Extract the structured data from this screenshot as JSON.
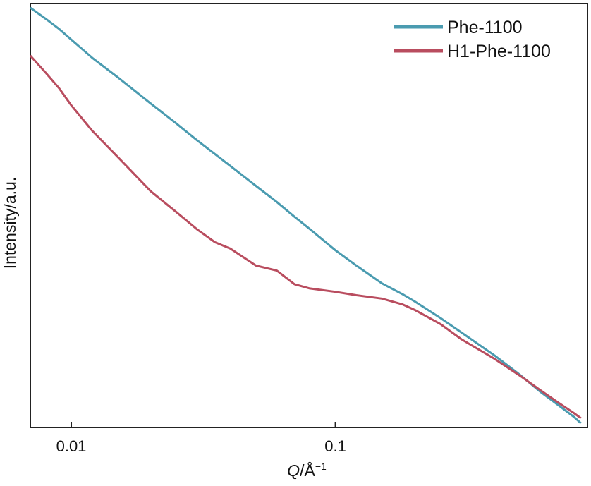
{
  "colors": {
    "background": "#ffffff",
    "axis": "#222222",
    "series_phe": "#4a9bb0",
    "series_h1": "#b94d5f"
  },
  "chart_data": {
    "type": "line",
    "title": "",
    "xlabel_italic": "Q",
    "xlabel_unit": "/Å",
    "xlabel_exponent": "−1",
    "ylabel": "Intensity/a.u.",
    "xscale": "log",
    "xlim": [
      0.007,
      0.9
    ],
    "ylim": [
      0,
      1
    ],
    "yticks_shown": false,
    "grid": false,
    "legend_position": "top-right",
    "xticks": [
      {
        "value": 0.01,
        "label": "0.01"
      },
      {
        "value": 0.1,
        "label": "0.1"
      }
    ],
    "series": [
      {
        "name": "Phe-1100",
        "color": "#4a9bb0",
        "x": [
          0.007,
          0.008,
          0.009,
          0.01,
          0.012,
          0.015,
          0.02,
          0.025,
          0.03,
          0.04,
          0.05,
          0.06,
          0.07,
          0.08,
          0.1,
          0.12,
          0.15,
          0.18,
          0.2,
          0.25,
          0.3,
          0.4,
          0.5,
          0.6,
          0.7,
          0.8,
          0.85
        ],
        "y": [
          0.99,
          0.964,
          0.94,
          0.915,
          0.872,
          0.826,
          0.764,
          0.717,
          0.677,
          0.617,
          0.57,
          0.532,
          0.497,
          0.468,
          0.418,
          0.382,
          0.34,
          0.314,
          0.297,
          0.258,
          0.224,
          0.17,
          0.124,
          0.083,
          0.052,
          0.025,
          0.01
        ]
      },
      {
        "name": "H1-Phe-1100",
        "color": "#b94d5f",
        "x": [
          0.007,
          0.008,
          0.009,
          0.01,
          0.012,
          0.015,
          0.02,
          0.025,
          0.03,
          0.035,
          0.04,
          0.05,
          0.06,
          0.07,
          0.08,
          0.1,
          0.12,
          0.15,
          0.18,
          0.2,
          0.25,
          0.3,
          0.4,
          0.5,
          0.6,
          0.7,
          0.8,
          0.85
        ],
        "y": [
          0.877,
          0.837,
          0.8,
          0.76,
          0.7,
          0.638,
          0.557,
          0.508,
          0.467,
          0.437,
          0.422,
          0.382,
          0.37,
          0.338,
          0.328,
          0.32,
          0.312,
          0.304,
          0.29,
          0.277,
          0.244,
          0.208,
          0.162,
          0.122,
          0.087,
          0.058,
          0.034,
          0.022
        ]
      }
    ]
  }
}
